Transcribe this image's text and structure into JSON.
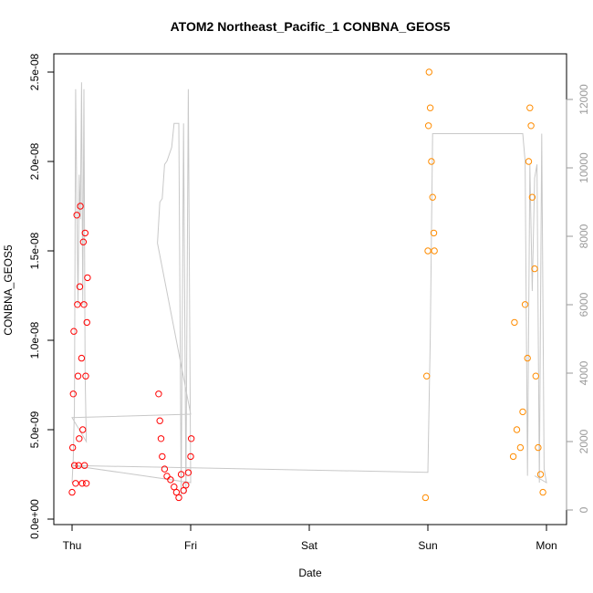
{
  "chart_data": {
    "type": "scatter",
    "title": "ATOM2 Northeast_Pacific_1 CONBNA_GEOS5",
    "xlabel": "Date",
    "ylabel": "CONBNA_GEOS5",
    "x_ticks": [
      "Thu",
      "Fri",
      "Sat",
      "Sun",
      "Mon"
    ],
    "y_ticks": [
      "0.0e+00",
      "5.0e-09",
      "1.0e-08",
      "1.5e-08",
      "2.0e-08",
      "2.5e-08"
    ],
    "y_tick_values": [
      0,
      5e-09,
      1e-08,
      1.5e-08,
      2e-08,
      2.5e-08
    ],
    "ylim": [
      0,
      2.5e-08
    ],
    "xlim": [
      0,
      4
    ],
    "y2_ticks": [
      "0",
      "2000",
      "4000",
      "6000",
      "8000",
      "10000",
      "12000"
    ],
    "y2_tick_values": [
      0,
      2000,
      4000,
      6000,
      8000,
      10000,
      12000
    ],
    "y2lim": [
      0,
      12000
    ],
    "colors": {
      "series1": "#ff0000",
      "series2": "#ff8c00",
      "altitude": "#c8c8c8",
      "axis_right": "#9a9a9a"
    },
    "series": [
      {
        "color": "#ff0000",
        "points": [
          [
            0.0,
            1.5e-09
          ],
          [
            0.005,
            4e-09
          ],
          [
            0.01,
            7e-09
          ],
          [
            0.015,
            1.05e-08
          ],
          [
            0.02,
            3e-09
          ],
          [
            0.03,
            2e-09
          ],
          [
            0.04,
            1.7e-08
          ],
          [
            0.045,
            1.2e-08
          ],
          [
            0.05,
            8e-09
          ],
          [
            0.055,
            3e-09
          ],
          [
            0.06,
            4.5e-09
          ],
          [
            0.065,
            1.3e-08
          ],
          [
            0.07,
            1.75e-08
          ],
          [
            0.08,
            9e-09
          ],
          [
            0.085,
            2e-09
          ],
          [
            0.09,
            5e-09
          ],
          [
            0.095,
            1.55e-08
          ],
          [
            0.1,
            1.2e-08
          ],
          [
            0.105,
            3e-09
          ],
          [
            0.11,
            1.6e-08
          ],
          [
            0.115,
            8e-09
          ],
          [
            0.12,
            2e-09
          ],
          [
            0.125,
            1.1e-08
          ],
          [
            0.13,
            1.35e-08
          ],
          [
            0.73,
            7e-09
          ],
          [
            0.74,
            5.5e-09
          ],
          [
            0.75,
            4.5e-09
          ],
          [
            0.76,
            3.5e-09
          ],
          [
            0.78,
            2.8e-09
          ],
          [
            0.8,
            2.4e-09
          ],
          [
            0.83,
            2.2e-09
          ],
          [
            0.86,
            1.8e-09
          ],
          [
            0.88,
            1.5e-09
          ],
          [
            0.9,
            1.2e-09
          ],
          [
            0.92,
            2.5e-09
          ],
          [
            0.94,
            1.6e-09
          ],
          [
            0.96,
            1.9e-09
          ],
          [
            0.98,
            2.6e-09
          ],
          [
            1.0,
            3.5e-09
          ],
          [
            1.005,
            4.5e-09
          ]
        ]
      },
      {
        "color": "#ff8c00",
        "points": [
          [
            2.98,
            1.2e-09
          ],
          [
            2.99,
            8e-09
          ],
          [
            3.0,
            1.5e-08
          ],
          [
            3.005,
            2.2e-08
          ],
          [
            3.01,
            2.5e-08
          ],
          [
            3.02,
            2.3e-08
          ],
          [
            3.03,
            2e-08
          ],
          [
            3.04,
            1.8e-08
          ],
          [
            3.05,
            1.6e-08
          ],
          [
            3.055,
            1.5e-08
          ],
          [
            3.72,
            3.5e-09
          ],
          [
            3.73,
            1.1e-08
          ],
          [
            3.75,
            5e-09
          ],
          [
            3.78,
            4e-09
          ],
          [
            3.8,
            6e-09
          ],
          [
            3.82,
            1.2e-08
          ],
          [
            3.84,
            9e-09
          ],
          [
            3.85,
            2e-08
          ],
          [
            3.86,
            2.3e-08
          ],
          [
            3.87,
            2.2e-08
          ],
          [
            3.88,
            1.8e-08
          ],
          [
            3.9,
            1.4e-08
          ],
          [
            3.91,
            8e-09
          ],
          [
            3.93,
            4e-09
          ],
          [
            3.95,
            2.5e-09
          ],
          [
            3.97,
            1.5e-09
          ]
        ]
      }
    ],
    "altitude_series": {
      "color": "#c8c8c8",
      "points": [
        [
          0.0,
          800
        ],
        [
          0.01,
          1500
        ],
        [
          0.02,
          3000
        ],
        [
          0.03,
          12300
        ],
        [
          0.04,
          9000
        ],
        [
          0.05,
          6000
        ],
        [
          0.06,
          9800
        ],
        [
          0.07,
          8500
        ],
        [
          0.08,
          12500
        ],
        [
          0.09,
          6000
        ],
        [
          0.1,
          12300
        ],
        [
          0.11,
          4000
        ],
        [
          0.12,
          2000
        ],
        [
          0.0,
          2700
        ],
        [
          1.0,
          2800
        ],
        [
          0.72,
          7800
        ],
        [
          0.74,
          9000
        ],
        [
          0.76,
          9100
        ],
        [
          0.78,
          10100
        ],
        [
          0.8,
          10200
        ],
        [
          0.84,
          10600
        ],
        [
          0.86,
          11300
        ],
        [
          0.88,
          11300
        ],
        [
          0.9,
          11300
        ],
        [
          0.92,
          400
        ],
        [
          0.94,
          11300
        ],
        [
          0.96,
          500
        ],
        [
          0.98,
          12300
        ],
        [
          1.0,
          800
        ],
        [
          0.0,
          1300
        ],
        [
          3.0,
          1100
        ],
        [
          3.02,
          5000
        ],
        [
          3.04,
          11000
        ],
        [
          3.06,
          11000
        ],
        [
          3.8,
          11000
        ],
        [
          3.82,
          10200
        ],
        [
          3.84,
          1000
        ],
        [
          3.86,
          10100
        ],
        [
          3.88,
          6400
        ],
        [
          3.9,
          9700
        ],
        [
          3.92,
          10100
        ],
        [
          3.94,
          800
        ],
        [
          3.96,
          11000
        ],
        [
          3.98,
          1200
        ],
        [
          4.0,
          800
        ],
        [
          3.9,
          1000
        ]
      ]
    }
  }
}
